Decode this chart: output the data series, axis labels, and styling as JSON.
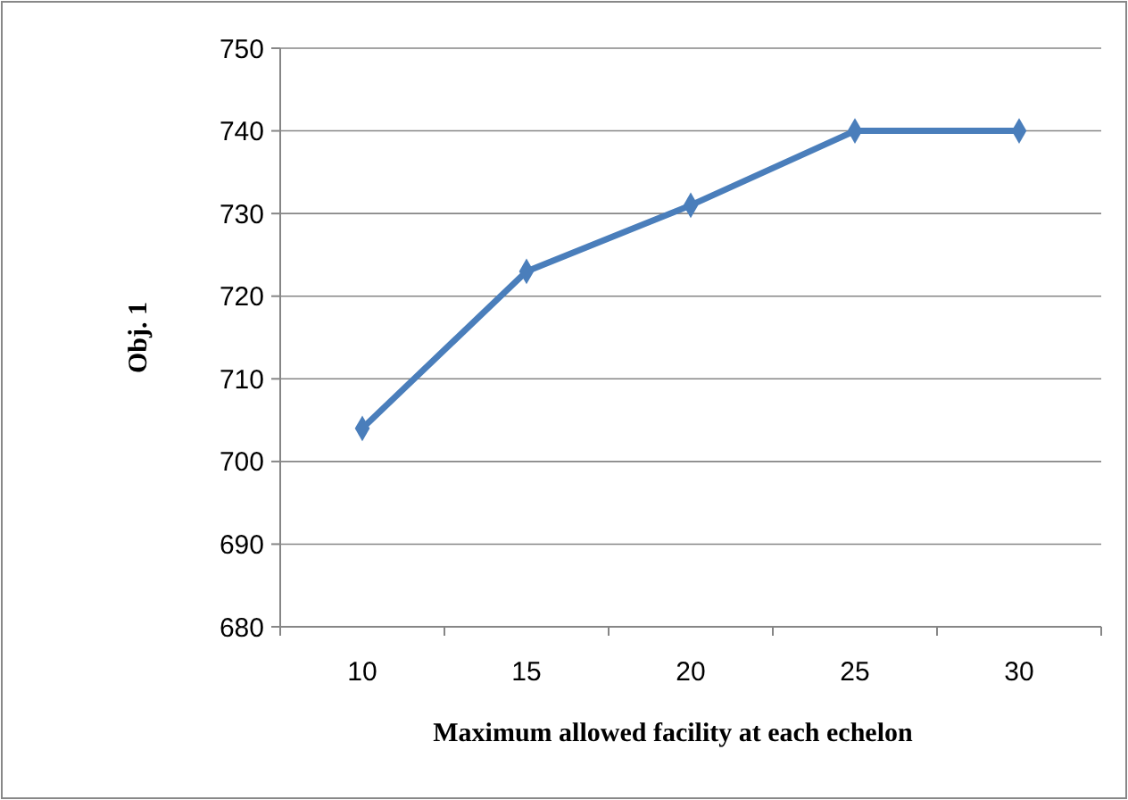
{
  "chart_data": {
    "type": "line",
    "xlabel": "Maximum allowed facility at each echelon",
    "ylabel": "Obj. 1",
    "categories": [
      "10",
      "15",
      "20",
      "25",
      "30"
    ],
    "series": [
      {
        "color": "#4a7ebb",
        "values": [
          704,
          723,
          731,
          740,
          740
        ]
      }
    ],
    "ylim": [
      680,
      750
    ],
    "yticks": [
      680,
      690,
      700,
      710,
      720,
      730,
      740,
      750
    ],
    "grid": "y",
    "marker": "diamond",
    "line_style": "solid"
  }
}
